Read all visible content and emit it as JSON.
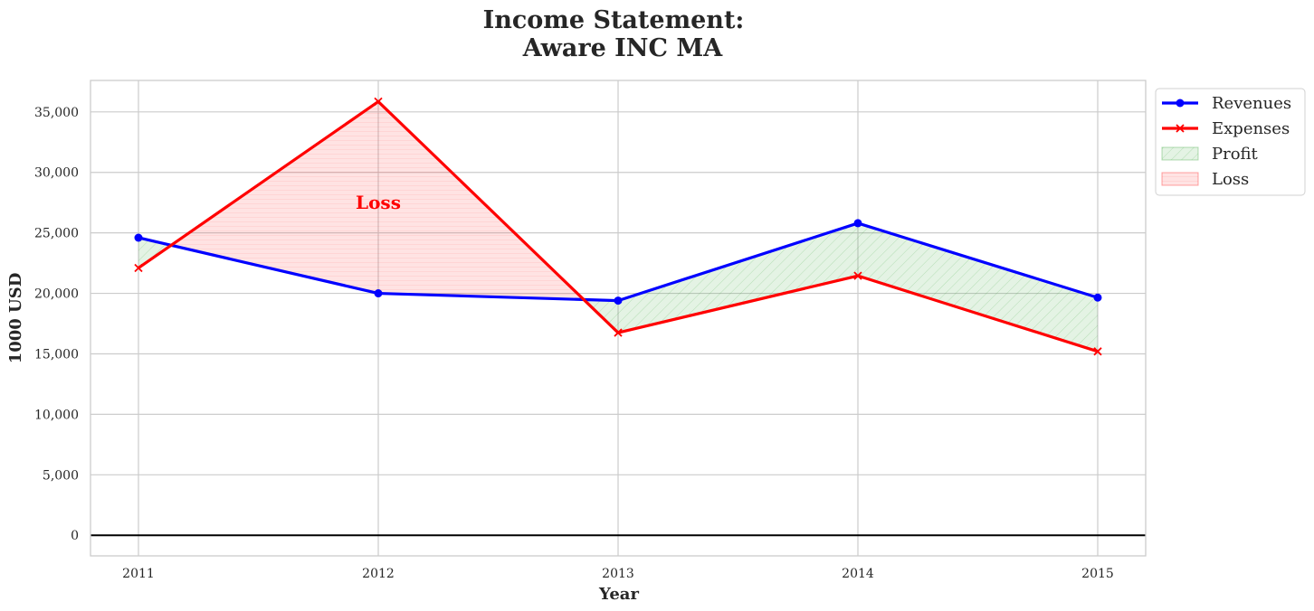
{
  "chart_data": {
    "type": "line",
    "title_line1": "Income Statement:",
    "title_line2": "Aware INC MA",
    "xlabel": "Year",
    "ylabel": "1000 USD",
    "categories": [
      "2011",
      "2012",
      "2013",
      "2014",
      "2015"
    ],
    "series": [
      {
        "name": "Revenues",
        "color": "#0000ff",
        "marker": "circle",
        "values": [
          24600,
          20000,
          19400,
          25800,
          19650
        ]
      },
      {
        "name": "Expenses",
        "color": "#ff0000",
        "marker": "x",
        "values": [
          22100,
          35850,
          16750,
          21450,
          15200
        ]
      }
    ],
    "fills": [
      {
        "name": "Profit",
        "color": "#2ca02c",
        "condition": "revenues>=expenses"
      },
      {
        "name": "Loss",
        "color": "#ff0000",
        "condition": "revenues<expenses"
      }
    ],
    "annotation": {
      "text": "Loss",
      "x": "2012",
      "y": 27500,
      "color": "#ff0000"
    },
    "ylim": [
      -1700,
      37600
    ],
    "yticks": [
      0,
      5000,
      10000,
      15000,
      20000,
      25000,
      30000,
      35000
    ],
    "ytick_labels": [
      "0",
      "5,000",
      "10,000",
      "15,000",
      "20,000",
      "25,000",
      "30,000",
      "35,000"
    ],
    "grid": true,
    "zero_line": true,
    "legend_position": "outside-top-right"
  }
}
